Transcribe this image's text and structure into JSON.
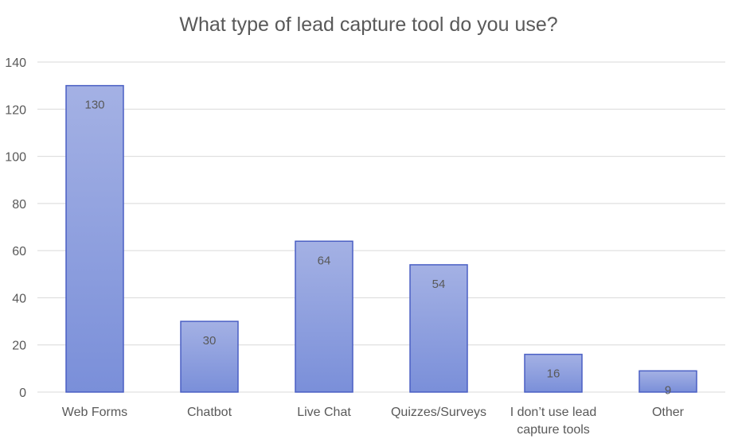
{
  "chart_data": {
    "type": "bar",
    "title": "What type of lead capture tool do you use?",
    "categories": [
      "Web Forms",
      "Chatbot",
      "Live Chat",
      "Quizzes/Surveys",
      "I don’t use lead capture tools",
      "Other"
    ],
    "category_lines": [
      [
        "Web Forms"
      ],
      [
        "Chatbot"
      ],
      [
        "Live Chat"
      ],
      [
        "Quizzes/Surveys"
      ],
      [
        "I don’t use lead",
        "capture tools"
      ],
      [
        "Other"
      ]
    ],
    "values": [
      130,
      30,
      64,
      54,
      16,
      9
    ],
    "data_labels": [
      "130",
      "30",
      "64",
      "54",
      "16",
      "9"
    ],
    "ylim": [
      0,
      140
    ],
    "yticks": [
      0,
      20,
      40,
      60,
      80,
      100,
      120,
      140
    ],
    "ytick_labels": [
      "0",
      "20",
      "40",
      "60",
      "80",
      "100",
      "120",
      "140"
    ],
    "xlabel": "",
    "ylabel": "",
    "grid": true,
    "legend": "none",
    "colors": {
      "bar_top": "#a4b1e4",
      "bar_bottom": "#7a8fd9",
      "bar_border": "#4a5fc4",
      "grid": "#d9d9d9",
      "text": "#595959"
    }
  }
}
